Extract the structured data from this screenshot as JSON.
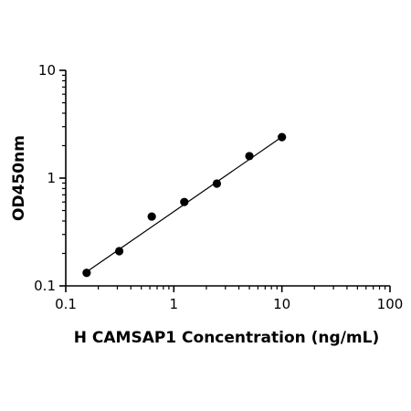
{
  "chart_data": {
    "type": "scatter",
    "title": "",
    "xlabel": "H CAMSAP1 Concentration (ng/mL)",
    "ylabel": "OD450nm",
    "x_scale": "log",
    "y_scale": "log",
    "xlim": [
      0.1,
      100
    ],
    "ylim": [
      0.1,
      10
    ],
    "x_ticks": [
      0.1,
      1,
      10,
      100
    ],
    "x_tick_labels": [
      "0.1",
      "1",
      "10",
      "100"
    ],
    "y_ticks": [
      0.1,
      1,
      10
    ],
    "y_tick_labels": [
      "0.1",
      "1",
      "10"
    ],
    "grid": false,
    "legend": "none",
    "colors": {
      "points": "#000000",
      "line": "#000000",
      "axes": "#000000"
    },
    "series": [
      {
        "x": [
          0.156,
          0.3125,
          0.625,
          1.25,
          2.5,
          5,
          10
        ],
        "y": [
          0.132,
          0.21,
          0.44,
          0.6,
          0.89,
          1.6,
          2.4
        ]
      }
    ],
    "fit_line": {
      "x": [
        0.156,
        10
      ],
      "y": [
        0.135,
        2.41
      ]
    }
  }
}
